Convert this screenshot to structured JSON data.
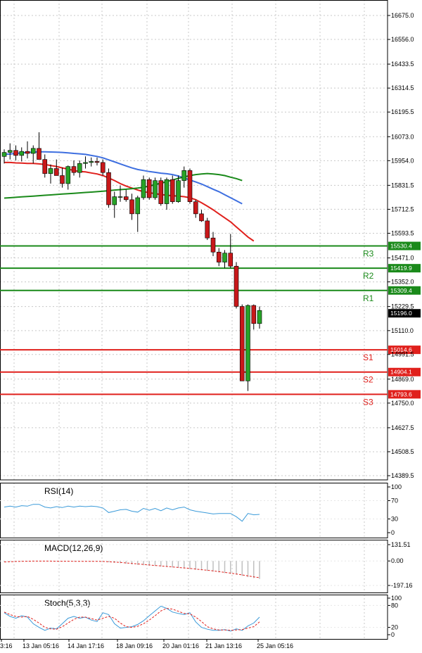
{
  "chart_data": {
    "type": "candlestick",
    "price_axis": {
      "ticks": [
        "16675.0",
        "16556.0",
        "16433.5",
        "16314.5",
        "16195.5",
        "16073.0",
        "15954.0",
        "15831.5",
        "15712.5",
        "15593.5",
        "15471.0",
        "15352.0",
        "15229.5",
        "15110.0",
        "14991.5",
        "14869.0",
        "14750.0",
        "14627.5",
        "14508.5",
        "14389.5"
      ],
      "range": [
        14389.5,
        16675.0
      ]
    },
    "current_price": {
      "label": "15196.0",
      "value": 15196.0
    },
    "levels": [
      {
        "name": "R3",
        "label": "15530.4",
        "value": 15530.4,
        "color": "#1a8a1a"
      },
      {
        "name": "R2",
        "label": "15419.9",
        "value": 15419.9,
        "color": "#1a8a1a"
      },
      {
        "name": "R1",
        "label": "15309.4",
        "value": 15309.4,
        "color": "#1a8a1a"
      },
      {
        "name": "S1",
        "label": "15014.6",
        "value": 15014.6,
        "color": "#e0201c"
      },
      {
        "name": "S2",
        "label": "14904.1",
        "value": 14904.1,
        "color": "#e0201c"
      },
      {
        "name": "S3",
        "label": "14793.6",
        "value": 14793.6,
        "color": "#e0201c"
      }
    ],
    "candles": [
      [
        15975,
        16010,
        15940,
        15995
      ],
      [
        15995,
        16040,
        15960,
        16005
      ],
      [
        16005,
        16030,
        15955,
        15980
      ],
      [
        15980,
        16020,
        15950,
        16000
      ],
      [
        16000,
        16050,
        15965,
        15990
      ],
      [
        15990,
        16030,
        15940,
        16015
      ],
      [
        16015,
        16095,
        15960,
        15960
      ],
      [
        15960,
        15985,
        15870,
        15890
      ],
      [
        15890,
        15935,
        15840,
        15915
      ],
      [
        15915,
        15960,
        15880,
        15880
      ],
      [
        15880,
        15920,
        15820,
        15840
      ],
      [
        15840,
        15930,
        15810,
        15925
      ],
      [
        15925,
        15955,
        15880,
        15895
      ],
      [
        15895,
        15955,
        15870,
        15940
      ],
      [
        15940,
        15975,
        15915,
        15945
      ],
      [
        15945,
        15970,
        15925,
        15950
      ],
      [
        15950,
        15970,
        15930,
        15945
      ],
      [
        15945,
        15960,
        15880,
        15895
      ],
      [
        15895,
        15915,
        15720,
        15735
      ],
      [
        15735,
        15800,
        15670,
        15775
      ],
      [
        15775,
        15830,
        15750,
        15775
      ],
      [
        15775,
        15810,
        15750,
        15760
      ],
      [
        15760,
        15790,
        15660,
        15690
      ],
      [
        15690,
        15780,
        15600,
        15770
      ],
      [
        15770,
        15880,
        15760,
        15860
      ],
      [
        15860,
        15870,
        15760,
        15770
      ],
      [
        15770,
        15870,
        15760,
        15855
      ],
      [
        15855,
        15870,
        15730,
        15740
      ],
      [
        15740,
        15870,
        15710,
        15860
      ],
      [
        15860,
        15880,
        15740,
        15750
      ],
      [
        15750,
        15880,
        15745,
        15855
      ],
      [
        15855,
        15925,
        15820,
        15905
      ],
      [
        15905,
        15915,
        15740,
        15750
      ],
      [
        15750,
        15760,
        15670,
        15690
      ],
      [
        15690,
        15710,
        15650,
        15655
      ],
      [
        15655,
        15670,
        15560,
        15570
      ],
      [
        15570,
        15600,
        15480,
        15500
      ],
      [
        15500,
        15520,
        15430,
        15450
      ],
      [
        15450,
        15510,
        15420,
        15495
      ],
      [
        15495,
        15590,
        15420,
        15430
      ],
      [
        15430,
        15450,
        15220,
        15230
      ],
      [
        15230,
        15240,
        14860,
        14860
      ],
      [
        14860,
        15240,
        14810,
        15235
      ],
      [
        15235,
        15240,
        15115,
        15145
      ],
      [
        15145,
        15230,
        15120,
        15210
      ]
    ],
    "moving_averages": [
      {
        "color": "#e0201c",
        "values": [
          15945,
          15945,
          15943,
          15942,
          15940,
          15940,
          15938,
          15935,
          15930,
          15925,
          15918,
          15912,
          15905,
          15900,
          15898,
          15893,
          15888,
          15880,
          15868,
          15855,
          15840,
          15828,
          15818,
          15808,
          15800,
          15795,
          15790,
          15786,
          15782,
          15780,
          15778,
          15775,
          15770,
          15760,
          15745,
          15728,
          15710,
          15690,
          15670,
          15650,
          15625,
          15600,
          15575,
          15555,
          null
        ]
      },
      {
        "color": "#3e6fe0",
        "values": [
          15985,
          15987,
          15990,
          15992,
          15995,
          15996,
          15998,
          15998,
          15997,
          15996,
          15995,
          15993,
          15990,
          15988,
          15985,
          15980,
          15975,
          15968,
          15958,
          15948,
          15938,
          15928,
          15918,
          15910,
          15905,
          15900,
          15896,
          15892,
          15889,
          15885,
          15878,
          15868,
          15858,
          15848,
          15838,
          15825,
          15812,
          15800,
          15785,
          15770,
          15755,
          15740,
          null,
          null,
          null
        ]
      },
      {
        "color": "#1a8a1a",
        "values": [
          15768,
          15770,
          15772,
          15774,
          15776,
          15778,
          15780,
          15782,
          15784,
          15786,
          15788,
          15790,
          15792,
          15794,
          15796,
          15798,
          15800,
          15802,
          15805,
          15808,
          15810,
          15812,
          15815,
          15818,
          15822,
          15828,
          15835,
          15842,
          15850,
          15858,
          15866,
          15873,
          15880,
          15885,
          15888,
          15890,
          15888,
          15885,
          15880,
          15872,
          15865,
          15855,
          null,
          null,
          null
        ]
      }
    ],
    "indicators": [
      {
        "title": "RSI(14)",
        "ticks": [
          "100",
          "70",
          "30",
          "0"
        ],
        "range": [
          0,
          100
        ],
        "series": [
          {
            "color": "#3a9ad9",
            "values": [
              56,
              58,
              56,
              59,
              58,
              62,
              62,
              56,
              54,
              57,
              55,
              58,
              56,
              58,
              57,
              58,
              57,
              54,
              44,
              47,
              50,
              51,
              47,
              45,
              53,
              49,
              53,
              48,
              54,
              50,
              54,
              56,
              50,
              47,
              45,
              43,
              41,
              42,
              42,
              42,
              35,
              25,
              42,
              39,
              40
            ]
          }
        ]
      },
      {
        "title": "MACD(12,26,9)",
        "ticks": [
          "131.51",
          "0.00",
          "-197.16"
        ],
        "range": [
          -197.16,
          131.51
        ],
        "histogram": {
          "color": "#c0c0c0",
          "values": [
            -8,
            -6,
            -5,
            -4,
            -3,
            -2,
            -1,
            -2,
            -2,
            -2,
            -3,
            -3,
            -3,
            -3,
            -3,
            -3,
            -3,
            -4,
            -10,
            -14,
            -18,
            -22,
            -28,
            -32,
            -34,
            -38,
            -40,
            -44,
            -48,
            -52,
            -56,
            -60,
            -66,
            -70,
            -74,
            -80,
            -86,
            -92,
            -98,
            -104,
            -110,
            -120,
            -130,
            -138,
            -145
          ]
        },
        "series": [
          {
            "color": "#e0201c",
            "dashed": true,
            "values": [
              -8,
              -6,
              -4,
              -3,
              -2,
              -1,
              -1,
              -1,
              -1,
              -2,
              -2,
              -2,
              -3,
              -3,
              -3,
              -3,
              -3,
              -4,
              -6,
              -9,
              -12,
              -16,
              -20,
              -24,
              -28,
              -32,
              -36,
              -40,
              -44,
              -48,
              -52,
              -56,
              -60,
              -65,
              -70,
              -75,
              -80,
              -86,
              -92,
              -98,
              -105,
              -112,
              -120,
              -128,
              -135
            ]
          }
        ]
      },
      {
        "title": "Stoch(5,3,3)",
        "ticks": [
          "100",
          "80",
          "20",
          "0"
        ],
        "range": [
          0,
          100
        ],
        "series": [
          {
            "color": "#3a9ad9",
            "values": [
              60,
              50,
              45,
              52,
              48,
              30,
              20,
              12,
              18,
              16,
              30,
              45,
              50,
              45,
              48,
              40,
              36,
              60,
              55,
              30,
              18,
              20,
              22,
              28,
              38,
              52,
              65,
              78,
              72,
              62,
              58,
              55,
              60,
              35,
              20,
              15,
              12,
              12,
              14,
              10,
              16,
              12,
              24,
              32,
              48
            ]
          },
          {
            "color": "#e0201c",
            "dashed": true,
            "values": [
              62,
              55,
              50,
              48,
              50,
              42,
              32,
              20,
              16,
              15,
              22,
              32,
              42,
              48,
              48,
              44,
              40,
              45,
              50,
              45,
              32,
              22,
              20,
              23,
              30,
              40,
              52,
              65,
              72,
              70,
              64,
              58,
              57,
              48,
              36,
              22,
              16,
              13,
              13,
              12,
              13,
              14,
              18,
              22,
              35
            ]
          }
        ]
      }
    ],
    "x_labels": [
      "3:16",
      "13 Jan 05:16",
      "14 Jan 17:16",
      "18 Jan 09:16",
      "20 Jan 01:16",
      "21 Jan 13:16",
      "25 Jan 05:16"
    ]
  }
}
